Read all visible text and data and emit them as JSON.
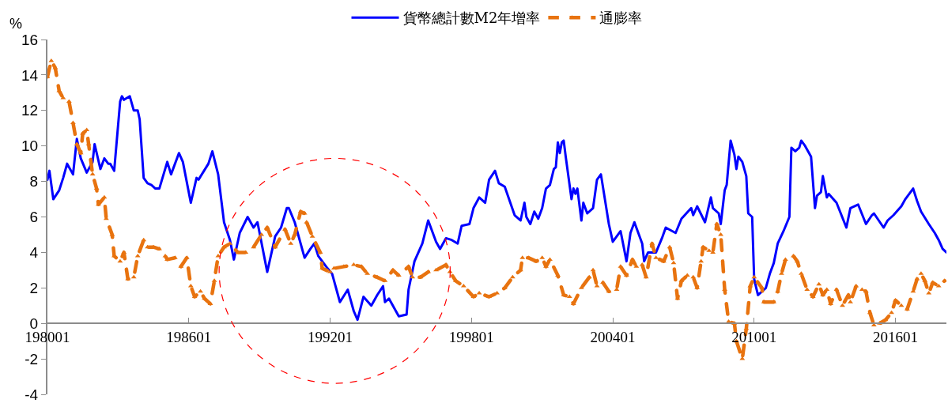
{
  "chart_data": {
    "type": "line",
    "ylabel": "%",
    "legend": "top",
    "xlim": [
      "1980-01",
      "2018-03"
    ],
    "xticks": [
      {
        "value": "1980-01",
        "label": "198001"
      },
      {
        "value": "1986-01",
        "label": "198601"
      },
      {
        "value": "1992-01",
        "label": "199201"
      },
      {
        "value": "1998-01",
        "label": "199801"
      },
      {
        "value": "2004-01",
        "label": "200401"
      },
      {
        "value": "2010-01",
        "label": "201001"
      },
      {
        "value": "2016-01",
        "label": "201601"
      }
    ],
    "ylim": [
      -4,
      16
    ],
    "yticks": [
      -4,
      -2,
      0,
      2,
      4,
      6,
      8,
      10,
      12,
      14,
      16
    ],
    "series": [
      {
        "name": "貨幣總計數M2年增率",
        "color": "#0000ff",
        "line_style": "solid",
        "marker": "none",
        "x": [
          "1980-01",
          "1980-02",
          "1980-04",
          "1980-07",
          "1980-09",
          "1980-11",
          "1981-02",
          "1981-04",
          "1981-06",
          "1981-09",
          "1981-12",
          "1982-01",
          "1982-04",
          "1982-06",
          "1982-08",
          "1982-09",
          "1982-11",
          "1983-02",
          "1983-03",
          "1983-04",
          "1983-07",
          "1983-09",
          "1983-11",
          "1983-12",
          "1984-02",
          "1984-04",
          "1984-06",
          "1984-08",
          "1984-10",
          "1985-02",
          "1985-04",
          "1985-08",
          "1985-10",
          "1986-02",
          "1986-05",
          "1986-06",
          "1986-11",
          "1987-01",
          "1987-04",
          "1987-07",
          "1987-10",
          "1987-12",
          "1988-03",
          "1988-07",
          "1988-10",
          "1988-12",
          "1989-05",
          "1989-09",
          "1989-12",
          "1990-03",
          "1990-04",
          "1990-07",
          "1990-12",
          "1991-03",
          "1991-05",
          "1991-07",
          "1991-11",
          "1992-02",
          "1992-06",
          "1992-10",
          "1993-01",
          "1993-03",
          "1993-06",
          "1993-10",
          "1994-01",
          "1994-04",
          "1994-05",
          "1994-07",
          "1994-12",
          "1995-04",
          "1995-05",
          "1995-08",
          "1995-12",
          "1996-03",
          "1996-07",
          "1996-09",
          "1996-12",
          "1997-03",
          "1997-06",
          "1997-08",
          "1997-12",
          "1998-02",
          "1998-05",
          "1998-08",
          "1998-10",
          "1999-01",
          "1999-03",
          "1999-06",
          "1999-11",
          "2000-02",
          "2000-04",
          "2000-05",
          "2000-07",
          "2000-09",
          "2000-11",
          "2001-01",
          "2001-03",
          "2001-05",
          "2001-07",
          "2001-08",
          "2001-09",
          "2001-10",
          "2001-11",
          "2001-12",
          "2002-01",
          "2002-04",
          "2002-05",
          "2002-06",
          "2002-07",
          "2002-09",
          "2002-10",
          "2002-12",
          "2003-03",
          "2003-05",
          "2003-07",
          "2003-11",
          "2004-01",
          "2004-05",
          "2004-08",
          "2004-10",
          "2004-12",
          "2005-04",
          "2005-05",
          "2005-07",
          "2005-11",
          "2006-02",
          "2006-04",
          "2006-09",
          "2006-12",
          "2007-05",
          "2007-06",
          "2007-08",
          "2007-12",
          "2008-03",
          "2008-04",
          "2008-07",
          "2008-08",
          "2008-10",
          "2008-11",
          "2009-01",
          "2009-03",
          "2009-04",
          "2009-05",
          "2009-07",
          "2009-09",
          "2009-10",
          "2009-12",
          "2010-01",
          "2010-03",
          "2010-07",
          "2010-09",
          "2010-11",
          "2011-01",
          "2011-04",
          "2011-07",
          "2011-08",
          "2011-10",
          "2011-12",
          "2012-01",
          "2012-03",
          "2012-06",
          "2012-08",
          "2012-09",
          "2012-11",
          "2012-12",
          "2013-02",
          "2013-03",
          "2013-07",
          "2013-12",
          "2014-02",
          "2014-06",
          "2014-10",
          "2015-01",
          "2015-02",
          "2015-07",
          "2015-09",
          "2015-12",
          "2016-04",
          "2016-06",
          "2016-10",
          "2016-12",
          "2017-02",
          "2017-06",
          "2017-09",
          "2017-11",
          "2018-01",
          "2018-03"
        ],
        "values": [
          8.1,
          8.6,
          7.0,
          7.5,
          8.2,
          9.0,
          8.4,
          10.4,
          9.3,
          8.5,
          9.1,
          10.1,
          8.7,
          9.3,
          9.0,
          9.0,
          8.6,
          12.5,
          12.8,
          12.6,
          12.8,
          12.0,
          12.0,
          11.5,
          8.2,
          7.9,
          7.8,
          7.6,
          7.6,
          9.1,
          8.4,
          9.6,
          9.1,
          6.8,
          8.2,
          8.1,
          9.0,
          9.7,
          8.4,
          5.7,
          4.7,
          3.6,
          5.1,
          6.0,
          5.4,
          5.7,
          2.9,
          4.9,
          5.4,
          6.5,
          6.5,
          5.7,
          3.7,
          4.2,
          4.5,
          3.8,
          3.2,
          2.8,
          1.2,
          1.9,
          0.7,
          0.2,
          1.5,
          1.0,
          1.6,
          2.1,
          1.2,
          1.4,
          0.4,
          0.5,
          1.9,
          3.5,
          4.5,
          5.8,
          4.6,
          4.2,
          4.8,
          4.7,
          4.5,
          5.5,
          5.6,
          6.5,
          7.1,
          6.8,
          8.1,
          8.6,
          7.9,
          7.7,
          6.1,
          5.8,
          6.8,
          6.0,
          5.6,
          6.3,
          5.9,
          6.5,
          7.6,
          7.8,
          8.7,
          8.8,
          10.2,
          9.6,
          10.2,
          10.3,
          9.4,
          7.0,
          7.6,
          7.3,
          7.6,
          5.8,
          6.8,
          6.2,
          6.5,
          8.1,
          8.4,
          5.6,
          4.6,
          5.2,
          3.5,
          5.1,
          5.7,
          4.5,
          3.5,
          4.0,
          4.0,
          4.8,
          5.4,
          5.1,
          5.9,
          6.5,
          6.1,
          6.6,
          5.7,
          7.1,
          6.5,
          6.2,
          5.6,
          7.5,
          7.8,
          10.3,
          9.5,
          8.7,
          9.4,
          9.1,
          8.3,
          6.2,
          6.0,
          2.5,
          1.6,
          2.0,
          2.8,
          3.4,
          4.5,
          5.2,
          6.0,
          9.9,
          9.7,
          9.9,
          10.3,
          10.0,
          9.4,
          6.5,
          7.2,
          7.4,
          8.3,
          7.1,
          7.3,
          6.8,
          5.4,
          6.5,
          6.7,
          5.6,
          6.1,
          6.2,
          5.4,
          5.8,
          6.1,
          6.6,
          7.0,
          7.6,
          6.9,
          6.3,
          5.6,
          5.1,
          4.7,
          4.2,
          4.0
        ]
      },
      {
        "name": "通膨率",
        "color": "#e8730f",
        "line_style": "dashed",
        "marker": "triangle",
        "x": [
          "1980-01",
          "1980-03",
          "1980-05",
          "1980-07",
          "1980-09",
          "1980-12",
          "1981-02",
          "1981-04",
          "1981-06",
          "1981-07",
          "1981-09",
          "1981-10",
          "1981-12",
          "1982-02",
          "1982-03",
          "1982-06",
          "1982-07",
          "1982-10",
          "1982-11",
          "1983-02",
          "1983-04",
          "1983-06",
          "1983-09",
          "1983-11",
          "1984-02",
          "1984-04",
          "1984-07",
          "1984-10",
          "1985-01",
          "1985-02",
          "1985-06",
          "1985-09",
          "1985-12",
          "1986-02",
          "1986-04",
          "1986-07",
          "1986-09",
          "1986-12",
          "1987-02",
          "1987-04",
          "1987-07",
          "1987-10",
          "1988-02",
          "1988-06",
          "1988-10",
          "1989-02",
          "1989-05",
          "1989-09",
          "1990-02",
          "1990-05",
          "1990-07",
          "1990-10",
          "1990-12",
          "1991-01",
          "1991-04",
          "1991-08",
          "1991-09",
          "1992-01",
          "1992-03",
          "1992-08",
          "1993-01",
          "1993-05",
          "1993-08",
          "1994-01",
          "1994-05",
          "1994-09",
          "1994-12",
          "1995-05",
          "1995-07",
          "1995-11",
          "1996-03",
          "1996-07",
          "1996-12",
          "1997-02",
          "1997-05",
          "1997-09",
          "1998-02",
          "1998-05",
          "1998-10",
          "1999-02",
          "1999-06",
          "1999-10",
          "2000-02",
          "2000-03",
          "2000-06",
          "2000-10",
          "2001-01",
          "2001-03",
          "2001-05",
          "2001-09",
          "2001-12",
          "2002-03",
          "2002-05",
          "2002-09",
          "2003-01",
          "2003-03",
          "2003-05",
          "2003-08",
          "2003-11",
          "2004-03",
          "2004-05",
          "2004-08",
          "2004-11",
          "2005-01",
          "2005-04",
          "2005-06",
          "2005-09",
          "2005-11",
          "2006-03",
          "2006-06",
          "2006-08",
          "2006-10",
          "2006-12",
          "2007-03",
          "2007-06",
          "2007-08",
          "2007-10",
          "2007-11",
          "2008-02",
          "2008-04",
          "2008-06",
          "2008-08",
          "2008-10",
          "2008-12",
          "2009-03",
          "2009-04",
          "2009-07",
          "2009-09",
          "2009-11",
          "2010-01",
          "2010-03",
          "2010-05",
          "2010-06",
          "2010-11",
          "2011-01",
          "2011-03",
          "2011-05",
          "2011-09",
          "2011-11",
          "2012-01",
          "2012-04",
          "2012-07",
          "2012-10",
          "2012-12",
          "2013-02",
          "2013-04",
          "2013-07",
          "2013-10",
          "2014-01",
          "2014-02",
          "2014-05",
          "2014-08",
          "2014-10",
          "2014-12",
          "2015-02",
          "2015-05",
          "2015-08",
          "2015-11",
          "2016-01",
          "2016-04",
          "2016-07",
          "2016-10",
          "2016-12",
          "2017-02",
          "2017-04",
          "2017-06",
          "2017-08",
          "2017-11",
          "2018-02"
        ],
        "values": [
          13.9,
          14.8,
          14.4,
          13.1,
          12.7,
          12.5,
          11.3,
          10.1,
          9.6,
          10.7,
          10.9,
          10.1,
          8.4,
          7.6,
          6.7,
          7.1,
          5.9,
          5.0,
          3.8,
          3.5,
          4.0,
          2.5,
          2.6,
          3.8,
          4.7,
          4.3,
          4.3,
          4.2,
          3.8,
          3.6,
          3.7,
          3.2,
          3.7,
          2.1,
          1.5,
          1.8,
          1.4,
          1.1,
          2.4,
          3.8,
          4.3,
          4.5,
          4.0,
          4.0,
          4.3,
          5.0,
          5.4,
          4.3,
          5.3,
          4.5,
          5.0,
          6.3,
          6.2,
          5.7,
          4.9,
          4.0,
          3.1,
          2.9,
          3.1,
          3.2,
          3.3,
          3.2,
          2.8,
          2.6,
          2.4,
          3.0,
          2.7,
          3.2,
          2.6,
          2.6,
          2.9,
          3.0,
          3.3,
          2.9,
          2.4,
          2.1,
          1.5,
          1.7,
          1.5,
          1.7,
          2.0,
          2.6,
          3.0,
          3.7,
          3.7,
          3.5,
          3.7,
          3.2,
          3.6,
          2.7,
          1.6,
          1.5,
          1.1,
          2.0,
          2.6,
          3.0,
          2.1,
          2.3,
          1.8,
          1.9,
          3.2,
          2.7,
          3.6,
          3.2,
          3.3,
          2.6,
          4.5,
          3.7,
          3.5,
          4.3,
          3.4,
          1.4,
          2.4,
          2.7,
          2.6,
          2.0,
          3.5,
          4.3,
          4.1,
          4.0,
          5.6,
          5.0,
          1.9,
          0.1,
          0.0,
          -1.0,
          -2.0,
          -0.3,
          2.1,
          2.6,
          2.3,
          2.0,
          1.2,
          1.2,
          1.8,
          2.8,
          3.6,
          3.8,
          3.5,
          2.8,
          1.9,
          1.5,
          2.2,
          1.6,
          1.9,
          1.1,
          1.9,
          1.0,
          1.6,
          1.2,
          2.1,
          1.9,
          1.8,
          0.6,
          -0.1,
          0.0,
          0.2,
          0.6,
          1.3,
          1.0,
          0.8,
          1.8,
          2.5,
          2.8,
          2.4,
          1.7,
          2.3,
          2.1,
          2.4
        ]
      }
    ]
  }
}
